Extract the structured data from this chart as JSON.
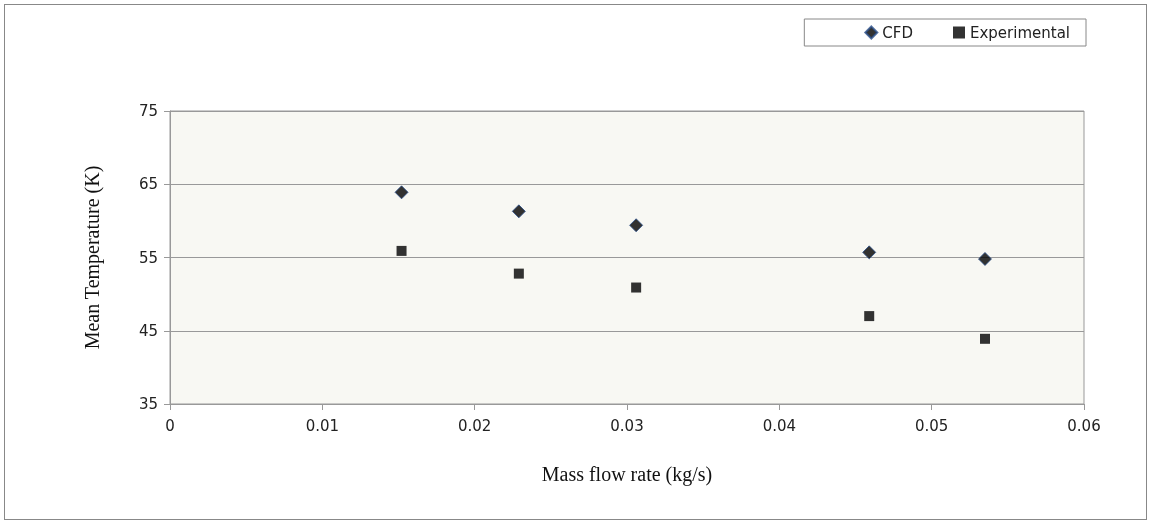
{
  "chart_data": {
    "type": "scatter",
    "xlabel": "Mass flow rate (kg/s)",
    "ylabel": "Mean Temperature (K)",
    "xlim": [
      0,
      0.06
    ],
    "xticks": [
      0,
      0.01,
      0.02,
      0.03,
      0.04,
      0.05,
      0.06
    ],
    "ylim": [
      35,
      75
    ],
    "yticks": [
      35,
      45,
      55,
      65,
      75
    ],
    "grid": "y",
    "legend": "top right",
    "series": [
      {
        "name": "CFD",
        "color": "#000000",
        "marker": "diamond",
        "x": [
          0.0152,
          0.0229,
          0.0306,
          0.0459,
          0.0535
        ],
        "values": [
          63.9,
          61.3,
          59.4,
          55.7,
          54.8
        ]
      },
      {
        "name": "Experimental",
        "color": "#000000",
        "marker": "square",
        "x": [
          0.0152,
          0.0229,
          0.0306,
          0.0459,
          0.0535
        ],
        "values": [
          55.9,
          52.8,
          50.9,
          47.0,
          43.9
        ]
      }
    ]
  }
}
